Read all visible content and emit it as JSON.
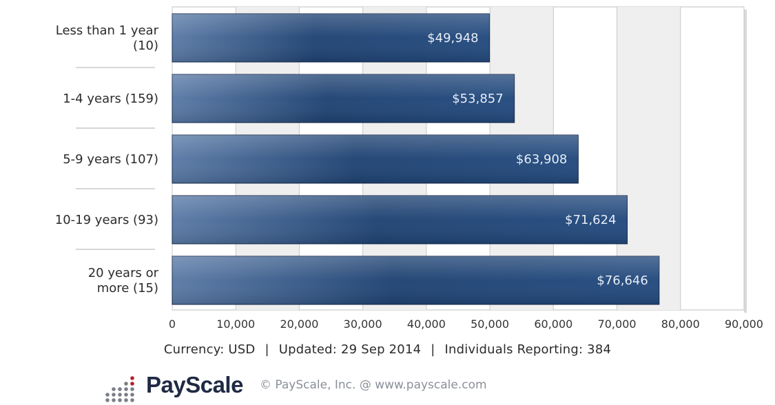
{
  "chart_data": {
    "type": "bar",
    "orientation": "horizontal",
    "categories": [
      [
        "Less than 1 year",
        "(10)"
      ],
      [
        "1-4 years (159)"
      ],
      [
        "5-9 years (107)"
      ],
      [
        "10-19 years (93)"
      ],
      [
        "20 years or",
        "more (15)"
      ]
    ],
    "values": [
      49948,
      53857,
      63908,
      71624,
      76646
    ],
    "value_labels": [
      "$49,948",
      "$53,857",
      "$63,908",
      "$71,624",
      "$76,646"
    ],
    "xlim": [
      0,
      90000
    ],
    "x_ticks": [
      0,
      10000,
      20000,
      30000,
      40000,
      50000,
      60000,
      70000,
      80000,
      90000
    ],
    "x_tick_labels": [
      "0",
      "10,000",
      "20,000",
      "30,000",
      "40,000",
      "50,000",
      "60,000",
      "70,000",
      "80,000",
      "90,000"
    ],
    "grid": "vertical, alternating bands",
    "colors": {
      "bar_dark": "#1f4373",
      "bar_light": "#5a7aa6",
      "band": "#efefef",
      "gridline": "#c8c8c8"
    }
  },
  "footer": {
    "currency": "Currency: USD",
    "updated": "Updated: 29 Sep 2014",
    "individuals": "Individuals Reporting: 384",
    "separator": "|"
  },
  "branding": {
    "name": "PayScale",
    "copyright": "© PayScale, Inc. @ www.payscale.com",
    "logo_icon": "payscale-dot-grid-logo",
    "logo_accent": "#b3202a",
    "logo_dots": "#7a7f88"
  }
}
